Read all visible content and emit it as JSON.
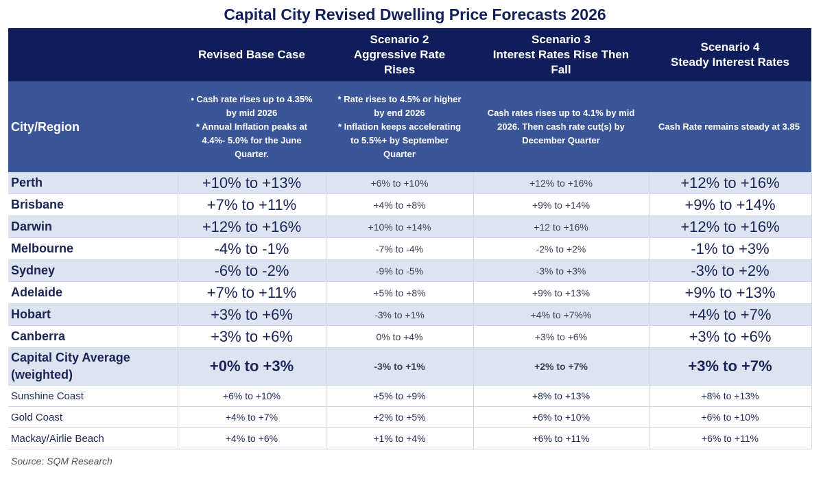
{
  "title": "Capital City  Revised Dwelling Price Forecasts 2026",
  "header": {
    "city_label": "City/Region",
    "columns": [
      {
        "name": "Revised Base Case",
        "description": "• Cash rate rises up to 4.35%\nby mid 2026\n* Annual Inflation peaks at\n4.4%- 5.0% for the June\nQuarter."
      },
      {
        "name": "Scenario 2\nAggressive Rate\nRises",
        "description": "* Rate rises to 4.5% or higher\nby end 2026\n* Inflation keeps accelerating\nto 5.5%+  by September\nQuarter"
      },
      {
        "name": "Scenario 3\nInterest Rates Rise Then\nFall",
        "description": "Cash rates rises up to 4.1% by mid\n2026. Then cash rate cut(s) by\nDecember Quarter"
      },
      {
        "name": "Scenario 4\nSteady Interest Rates",
        "description": "Cash Rate remains steady at 3.85"
      }
    ]
  },
  "rows": [
    {
      "city": "Perth",
      "values": [
        "+10% to +13%",
        "+6% to +10%",
        "+12% to +16%",
        "+12% to +16%"
      ]
    },
    {
      "city": "Brisbane",
      "values": [
        "+7% to +11%",
        "+4% to +8%",
        "+9% to +14%",
        "+9% to +14%"
      ]
    },
    {
      "city": "Darwin",
      "values": [
        "+12% to +16%",
        "+10% to +14%",
        "+12 to +16%",
        "+12% to +16%"
      ]
    },
    {
      "city": "Melbourne",
      "values": [
        "-4% to -1%",
        "-7% to -4%",
        "-2% to +2%",
        "-1% to +3%"
      ]
    },
    {
      "city": "Sydney",
      "values": [
        "-6% to -2%",
        "-9% to -5%",
        "-3% to +3%",
        "-3% to  +2%"
      ]
    },
    {
      "city": "Adelaide",
      "values": [
        "+7% to +11%",
        "+5% to +8%",
        "+9% to +13%",
        "+9% to +13%"
      ]
    },
    {
      "city": "Hobart",
      "values": [
        "+3% to +6%",
        "-3% to +1%",
        "+4% to +7%%",
        "+4% to +7%"
      ]
    },
    {
      "city": "Canberra",
      "values": [
        "+3% to +6%",
        "0% to +4%",
        "+3% to +6%",
        "+3% to +6%"
      ]
    },
    {
      "city": "Capital City Average\n(weighted)",
      "values": [
        "+0% to +3%",
        "-3% to +1%",
        "+2% to +7%",
        "+3% to +7%"
      ]
    },
    {
      "city": "Sunshine Coast",
      "values": [
        "+6% to +10%",
        "+5% to +9%",
        "+8% to +13%",
        "+8% to +13%"
      ]
    },
    {
      "city": "Gold Coast",
      "values": [
        "+4% to +7%",
        "+2% to +5%",
        "+6% to +10%",
        "+6% to +10%"
      ]
    },
    {
      "city": "Mackay/Airlie Beach",
      "values": [
        "+4% to +6%",
        "+1% to +4%",
        "+6% to +11%",
        "+6% to +11%"
      ]
    }
  ],
  "source": "Source: SQM Research",
  "colors": {
    "header_dark": "#0f1d5a",
    "header_mid": "#3a5598",
    "row_alt": "#dde3f1",
    "text": "#1a2456"
  }
}
